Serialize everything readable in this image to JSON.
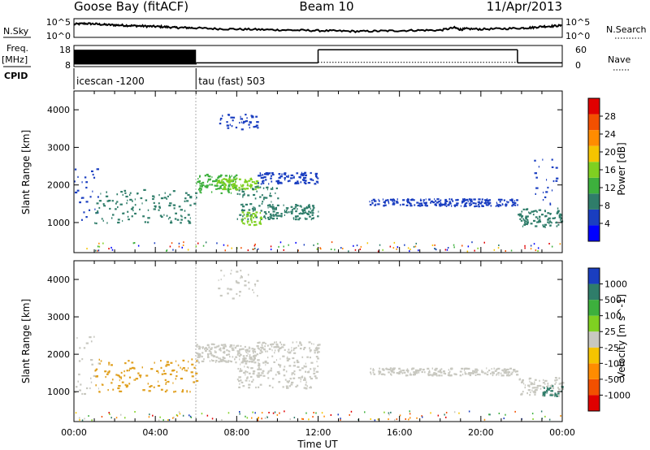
{
  "header": {
    "station": "Goose Bay (fitACF)",
    "beam": "Beam 10",
    "date": "11/Apr/2013"
  },
  "chart_data": [
    {
      "type": "line",
      "panel": "noise",
      "left_label": "N.Sky",
      "right_label": "N.Search",
      "ticks_left": [
        "10^5",
        "10^0"
      ],
      "ticks_right": [
        "10^5",
        "10^0"
      ],
      "ylim_log10": [
        0,
        5
      ],
      "x": [
        0,
        0.5,
        1,
        1.5,
        2,
        2.5,
        3,
        3.5,
        4,
        4.5,
        5,
        5.5,
        6,
        7,
        8,
        9,
        10,
        11,
        12,
        13,
        14,
        15,
        16,
        17,
        18,
        18.7,
        19,
        19.3,
        20,
        21,
        22,
        22.5,
        23,
        23.5,
        24
      ],
      "sky": [
        3.5,
        3.7,
        3.6,
        3.4,
        3.3,
        3.2,
        3.1,
        3.0,
        2.9,
        2.8,
        2.6,
        2.6,
        2.5,
        2.3,
        2.2,
        2.1,
        2.0,
        1.9,
        1.8,
        1.7,
        1.6,
        1.7,
        1.8,
        1.9,
        1.9,
        2.6,
        2.1,
        2.3,
        2.2,
        2.3,
        2.5,
        2.6,
        2.9,
        3.0,
        3.2
      ]
    },
    {
      "type": "line",
      "panel": "frequency",
      "left_label": "Freq.",
      "left_unit": "[MHz]",
      "right_label": "Nave",
      "ticks_left": [
        "18",
        "8"
      ],
      "ticks_right": [
        "60",
        "0"
      ],
      "freq_ylim": [
        8,
        18
      ],
      "nave_ylim": [
        0,
        60
      ],
      "segments": [
        {
          "start": 0,
          "end": 6,
          "freq_low": 9,
          "freq_high": 16
        },
        {
          "start": 6,
          "end": 12,
          "freq": 9.8
        },
        {
          "start": 12,
          "end": 21.8,
          "freq": 16
        },
        {
          "start": 21.8,
          "end": 24,
          "freq": 9.8
        }
      ],
      "nave_value": 12
    },
    {
      "type": "table",
      "panel": "cpid",
      "label": "CPID",
      "entries": [
        {
          "start": 0,
          "text": "icescan -1200"
        },
        {
          "start": 6,
          "text": "tau (fast) 503"
        }
      ]
    },
    {
      "type": "heatmap",
      "panel": "power",
      "ylabel": "Slant Range [km]",
      "yticks": [
        1000,
        2000,
        3000,
        4000
      ],
      "ylim": [
        200,
        4500
      ],
      "xlim": [
        0,
        24
      ],
      "colorbar": {
        "label": "Power [dB]",
        "ticks": [
          "4",
          "8",
          "12",
          "16",
          "20",
          "24",
          "28"
        ],
        "colors": [
          "#0000ff",
          "#1a3ec0",
          "#2f7d6a",
          "#3db03d",
          "#7fd021",
          "#f5c400",
          "#ff8c00",
          "#f25000",
          "#e00000"
        ]
      },
      "regions": [
        {
          "t0": 0.0,
          "t1": 1.2,
          "r0": 950,
          "r1": 2500,
          "color": "#1a3ec0",
          "density": 0.3
        },
        {
          "t0": 1.0,
          "t1": 6.0,
          "r0": 1000,
          "r1": 1900,
          "color": "#2f7d6a",
          "density": 0.35
        },
        {
          "t0": 6.0,
          "t1": 8.0,
          "r0": 1800,
          "r1": 2300,
          "color": "#3db03d",
          "density": 0.7
        },
        {
          "t0": 7.0,
          "t1": 9.0,
          "r0": 1900,
          "r1": 2200,
          "color": "#7fd021",
          "density": 0.6
        },
        {
          "t0": 8.0,
          "t1": 10.0,
          "r0": 1100,
          "r1": 2000,
          "color": "#2f7d6a",
          "density": 0.6
        },
        {
          "t0": 8.2,
          "t1": 9.2,
          "r0": 950,
          "r1": 1300,
          "color": "#7fd021",
          "density": 0.55
        },
        {
          "t0": 9.5,
          "t1": 12.0,
          "r0": 1100,
          "r1": 1500,
          "color": "#2f7d6a",
          "density": 0.55
        },
        {
          "t0": 9.0,
          "t1": 12.0,
          "r0": 2050,
          "r1": 2350,
          "color": "#1a3ec0",
          "density": 0.45
        },
        {
          "t0": 7.0,
          "t1": 9.0,
          "r0": 3500,
          "r1": 3900,
          "color": "#1a3ec0",
          "density": 0.3
        },
        {
          "t0": 14.5,
          "t1": 21.8,
          "r0": 1450,
          "r1": 1650,
          "color": "#1a3ec0",
          "density": 0.4
        },
        {
          "t0": 21.8,
          "t1": 24.0,
          "r0": 900,
          "r1": 1400,
          "color": "#2f7d6a",
          "density": 0.55
        },
        {
          "t0": 22.5,
          "t1": 23.7,
          "r0": 1500,
          "r1": 2700,
          "color": "#1a3ec0",
          "density": 0.25
        }
      ]
    },
    {
      "type": "heatmap",
      "panel": "velocity",
      "ylabel": "Slant Range [km]",
      "yticks": [
        1000,
        2000,
        3000,
        4000
      ],
      "ylim": [
        200,
        4500
      ],
      "xlim": [
        0,
        24
      ],
      "xticks": [
        "00:00",
        "04:00",
        "08:00",
        "12:00",
        "16:00",
        "20:00",
        "00:00"
      ],
      "xlabel": "Time UT",
      "colorbar": {
        "label": "Velocity [m s^-1]",
        "ticks": [
          "-1000",
          "-500",
          "-100",
          "-25",
          "25",
          "100",
          "500",
          "1000"
        ],
        "colors": [
          "#e00000",
          "#f25000",
          "#ff8c00",
          "#f5c400",
          "#c8c8c0",
          "#7fd021",
          "#3db03d",
          "#2f7d6a",
          "#1a3ec0"
        ]
      },
      "regions": [
        {
          "t0": 0.0,
          "t1": 1.2,
          "r0": 950,
          "r1": 2500,
          "color": "#c8c8c0",
          "density": 0.3
        },
        {
          "t0": 1.0,
          "t1": 6.0,
          "r0": 1000,
          "r1": 1900,
          "color": "#e0a020",
          "density": 0.35
        },
        {
          "t0": 6.0,
          "t1": 9.0,
          "r0": 1800,
          "r1": 2300,
          "color": "#c8c8c0",
          "density": 0.75
        },
        {
          "t0": 8.0,
          "t1": 12.0,
          "r0": 1100,
          "r1": 2000,
          "color": "#c8c8c0",
          "density": 0.6
        },
        {
          "t0": 9.0,
          "t1": 12.0,
          "r0": 2050,
          "r1": 2350,
          "color": "#c8c8c0",
          "density": 0.4
        },
        {
          "t0": 7.0,
          "t1": 9.0,
          "r0": 3500,
          "r1": 4300,
          "color": "#c8c8c0",
          "density": 0.25
        },
        {
          "t0": 14.5,
          "t1": 21.8,
          "r0": 1450,
          "r1": 1650,
          "color": "#c8c8c0",
          "density": 0.4
        },
        {
          "t0": 21.8,
          "t1": 24.0,
          "r0": 900,
          "r1": 1400,
          "color": "#c8c8c0",
          "density": 0.5
        },
        {
          "t0": 23.0,
          "t1": 24.0,
          "r0": 900,
          "r1": 1200,
          "color": "#2f7d6a",
          "density": 0.4
        }
      ]
    }
  ]
}
